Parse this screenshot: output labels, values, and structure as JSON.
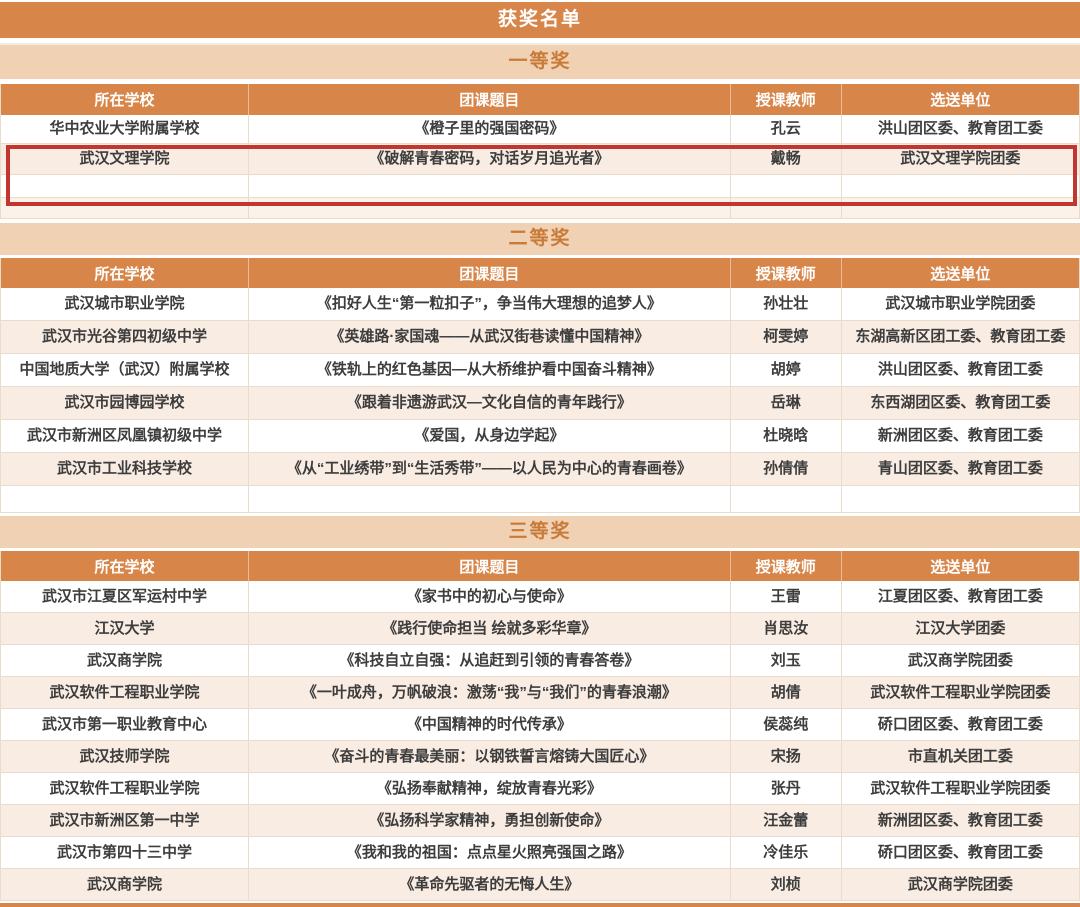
{
  "title": "获奖名单",
  "colors": {
    "banner_orange": "#D8854A",
    "section_banner_bg": "#F0D1B4",
    "section_banner_text": "#C87B38",
    "header_text": "#FFFFFF",
    "row_bg": "#FFFFFF",
    "row_alt_bg": "#F9ECE3",
    "empty_row_bg": "#FBF2E9",
    "cell_text": "#3D3D3D",
    "grid_line": "#EADCCB",
    "highlight_border": "#C2362F"
  },
  "columns": [
    "所在学校",
    "团课题目",
    "授课教师",
    "选送单位"
  ],
  "highlight": {
    "section_index": 0,
    "row_indexes": [
      1,
      2
    ],
    "note": "red rectangle around highlighted rows"
  },
  "sections": [
    {
      "title": "一等奖",
      "rows": [
        {
          "school": "华中农业大学附属学校",
          "topic": "《橙子里的强国密码》",
          "teacher": "孔云",
          "unit": "洪山团区委、教育团工委"
        },
        {
          "school": "武汉文理学院",
          "topic": "《破解青春密码，对话岁月追光者》",
          "teacher": "戴畅",
          "unit": "武汉文理学院团委",
          "highlighted": true
        },
        {
          "school": "",
          "topic": "",
          "teacher": "",
          "unit": "",
          "empty": true
        },
        {
          "school": "",
          "topic": "",
          "teacher": "",
          "unit": "",
          "empty": true
        }
      ]
    },
    {
      "title": "二等奖",
      "rows": [
        {
          "school": "武汉城市职业学院",
          "topic": "《扣好人生“第一粒扣子”，争当伟大理想的追梦人》",
          "teacher": "孙壮壮",
          "unit": "武汉城市职业学院团委"
        },
        {
          "school": "武汉市光谷第四初级中学",
          "topic": "《英雄路·家国魂——从武汉街巷读懂中国精神》",
          "teacher": "柯雯婷",
          "unit": "东湖高新区团工委、教育团工委"
        },
        {
          "school": "中国地质大学（武汉）附属学校",
          "topic": "《铁轨上的红色基因—从大桥维护看中国奋斗精神》",
          "teacher": "胡婷",
          "unit": "洪山团区委、教育团工委"
        },
        {
          "school": "武汉市园博园学校",
          "topic": "《跟着非遗游武汉—文化自信的青年践行》",
          "teacher": "岳琳",
          "unit": "东西湖团区委、教育团工委"
        },
        {
          "school": "武汉市新洲区凤凰镇初级中学",
          "topic": "《爱国，从身边学起》",
          "teacher": "杜晓晗",
          "unit": "新洲团区委、教育团工委"
        },
        {
          "school": "武汉市工业科技学校",
          "topic": "《从“工业绣带”到“生活秀带”——以人民为中心的青春画卷》",
          "teacher": "孙倩倩",
          "unit": "青山团区委、教育团工委"
        },
        {
          "school": "",
          "topic": "",
          "teacher": "",
          "unit": "",
          "empty": true
        }
      ]
    },
    {
      "title": "三等奖",
      "rows": [
        {
          "school": "武汉市江夏区军运村中学",
          "topic": "《家书中的初心与使命》",
          "teacher": "王雷",
          "unit": "江夏团区委、教育团工委"
        },
        {
          "school": "江汉大学",
          "topic": "《践行使命担当 绘就多彩华章》",
          "teacher": "肖思汝",
          "unit": "江汉大学团委"
        },
        {
          "school": "武汉商学院",
          "topic": "《科技自立自强：从追赶到引领的青春答卷》",
          "teacher": "刘玉",
          "unit": "武汉商学院团委"
        },
        {
          "school": "武汉软件工程职业学院",
          "topic": "《一叶成舟，万帆破浪：激荡“我”与“我们”的青春浪潮》",
          "teacher": "胡倩",
          "unit": "武汉软件工程职业学院团委"
        },
        {
          "school": "武汉市第一职业教育中心",
          "topic": "《中国精神的时代传承》",
          "teacher": "侯蕊纯",
          "unit": "硚口团区委、教育团工委"
        },
        {
          "school": "武汉技师学院",
          "topic": "《奋斗的青春最美丽：以钢铁誓言熔铸大国匠心》",
          "teacher": "宋扬",
          "unit": "市直机关团工委"
        },
        {
          "school": "武汉软件工程职业学院",
          "topic": "《弘扬奉献精神，绽放青春光彩》",
          "teacher": "张丹",
          "unit": "武汉软件工程职业学院团委"
        },
        {
          "school": "武汉市新洲区第一中学",
          "topic": "《弘扬科学家精神，勇担创新使命》",
          "teacher": "汪金蕾",
          "unit": "新洲团区委、教育团工委"
        },
        {
          "school": "武汉市第四十三中学",
          "topic": "《我和我的祖国：点点星火照亮强国之路》",
          "teacher": "冷佳乐",
          "unit": "硚口团区委、教育团工委"
        },
        {
          "school": "武汉商学院",
          "topic": "《革命先驱者的无悔人生》",
          "teacher": "刘桢",
          "unit": "武汉商学院团委"
        }
      ]
    }
  ]
}
